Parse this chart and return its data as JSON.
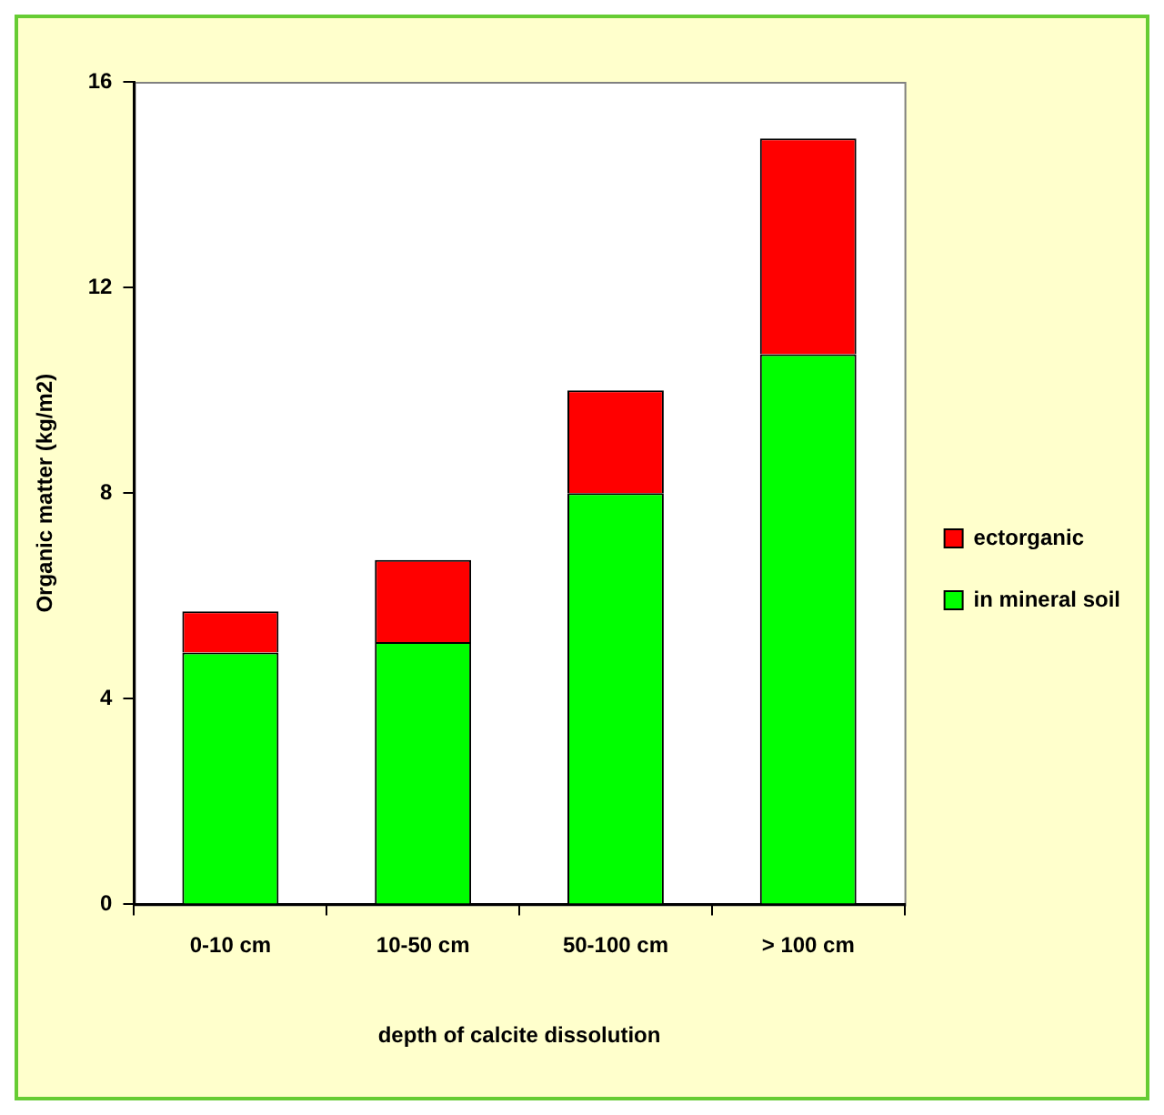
{
  "chart_data": {
    "type": "bar",
    "stacked": true,
    "xlabel": "depth of calcite dissolution",
    "ylabel": "Organic matter (kg/m2)",
    "categories": [
      "0-10 cm",
      "10-50 cm",
      "50-100 cm",
      "> 100 cm"
    ],
    "series": [
      {
        "name": "in mineral soil",
        "color": "#00ff00",
        "values": [
          4.9,
          5.1,
          8.0,
          10.7
        ]
      },
      {
        "name": "ectorganic",
        "color": "#ff0000",
        "values": [
          0.8,
          1.6,
          2.0,
          4.2
        ]
      }
    ],
    "ylim": [
      0,
      16
    ],
    "yticks": [
      0,
      4,
      8,
      12,
      16
    ],
    "grid": false,
    "legend": "right"
  }
}
